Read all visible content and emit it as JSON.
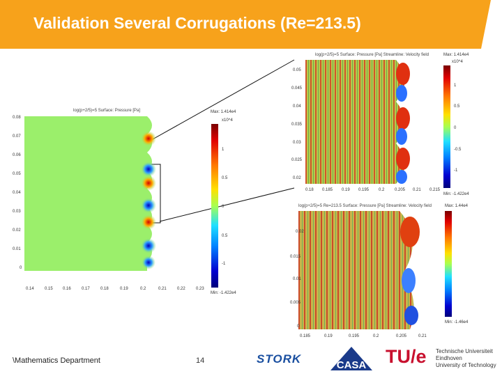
{
  "header": {
    "title": "Validation Several Corrugations (Re=213.5)",
    "accent_color": "#f7a21b"
  },
  "footer": {
    "department": "\\Mathematics Department",
    "page_number": "14"
  },
  "plot_main": {
    "title": "log(p+2/5)=5 Surface: Pressure [Pa]",
    "cbar_max": "Max: 1.414e4",
    "cbar_scale": "x10^4",
    "cbar_ticks": [
      "1",
      "0.5",
      "0",
      "0.5",
      "-1"
    ],
    "cbar_min": "Min: -1.422e4",
    "y_ticks": [
      "0.08",
      "0.07",
      "0.06",
      "0.05",
      "0.04",
      "0.03",
      "0.02",
      "0.01",
      "0"
    ],
    "x_ticks": [
      "0.14",
      "0.15",
      "0.16",
      "0.17",
      "0.18",
      "0.19",
      "0.2",
      "0.21",
      "0.22",
      "0.23"
    ]
  },
  "plot_zoom_top": {
    "title": "log(p+2/5)=5 Surface: Pressure [Pa] Streamline: Velocity field",
    "cbar_max": "Max: 1.414e4",
    "cbar_scale": "x10^4",
    "cbar_ticks": [
      "1",
      "0.5",
      "0",
      "-0.5",
      "-1"
    ],
    "cbar_min": "Min: -1.422e4",
    "y_ticks": [
      "0.05",
      "0.045",
      "0.04",
      "0.035",
      "0.03",
      "0.025",
      "0.02"
    ],
    "x_ticks": [
      "0.18",
      "0.185",
      "0.19",
      "0.195",
      "0.2",
      "0.205",
      "0.21",
      "0.215"
    ]
  },
  "plot_zoom_bottom": {
    "title": "log(p+2/5)=5 Re=213.5 Surface: Pressure [Pa] Streamline: Velocity field",
    "cbar_max": "Max: 1.44e4",
    "cbar_min": "Min: -1.46e4",
    "y_ticks": [
      "0.02",
      "0.015",
      "0.01",
      "0.005",
      "0"
    ],
    "x_ticks": [
      "0.185",
      "0.19",
      "0.195",
      "0.2",
      "0.205",
      "0.21"
    ]
  },
  "logos": {
    "stork": "STORK",
    "casa": "CASA",
    "tue": "TU/e",
    "tue_text": [
      "Technische Universiteit",
      "Eindhoven",
      "University of Technology"
    ]
  }
}
